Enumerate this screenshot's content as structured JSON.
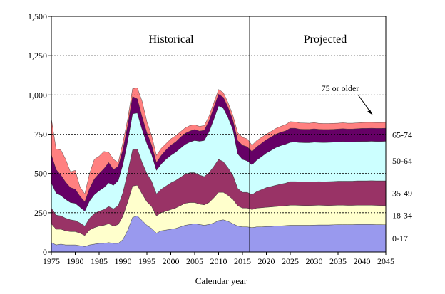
{
  "chart_data": {
    "type": "area",
    "xlabel": "Calendar year",
    "ylabel": "",
    "xlim": [
      1975,
      2045
    ],
    "ylim": [
      0,
      1500
    ],
    "y_ticks": [
      0,
      250,
      500,
      750,
      1000,
      1250,
      1500
    ],
    "y_tick_labels": [
      "0",
      "250",
      "500",
      "750",
      "1,000",
      "1,250",
      "1,500"
    ],
    "x_ticks": [
      1975,
      1980,
      1985,
      1990,
      1995,
      2000,
      2005,
      2010,
      2015,
      2020,
      2025,
      2030,
      2035,
      2040,
      2045
    ],
    "grid": "horizontal dashed",
    "divider_year": 2016.5,
    "region_labels": {
      "historical": "Historical",
      "projected": "Projected"
    },
    "annotation": "75 or older",
    "x": [
      1975,
      1976,
      1977,
      1978,
      1979,
      1980,
      1981,
      1982,
      1983,
      1984,
      1985,
      1986,
      1987,
      1988,
      1989,
      1990,
      1991,
      1992,
      1993,
      1994,
      1995,
      1996,
      1997,
      1998,
      1999,
      2000,
      2001,
      2002,
      2003,
      2004,
      2005,
      2006,
      2007,
      2008,
      2009,
      2010,
      2011,
      2012,
      2013,
      2014,
      2015,
      2016,
      2017,
      2018,
      2019,
      2020,
      2021,
      2022,
      2023,
      2024,
      2025,
      2026,
      2027,
      2028,
      2029,
      2030,
      2031,
      2032,
      2033,
      2034,
      2035,
      2036,
      2037,
      2038,
      2039,
      2040,
      2041,
      2042,
      2043,
      2044,
      2045
    ],
    "series": [
      {
        "name": "0-17",
        "color": "#9999ee",
        "values": [
          60,
          45,
          50,
          45,
          45,
          45,
          40,
          35,
          45,
          50,
          55,
          55,
          60,
          55,
          55,
          80,
          140,
          220,
          230,
          200,
          170,
          150,
          120,
          135,
          140,
          145,
          150,
          160,
          170,
          175,
          180,
          175,
          170,
          175,
          185,
          200,
          205,
          195,
          180,
          165,
          160,
          160,
          155,
          160,
          160,
          162,
          163,
          165,
          166,
          168,
          170,
          170,
          170,
          170,
          170,
          171,
          172,
          172,
          172,
          173,
          174,
          174,
          174,
          174,
          175,
          175,
          175,
          175,
          174,
          174,
          173
        ]
      },
      {
        "name": "18-34",
        "color": "#ffffcc",
        "values": [
          120,
          100,
          95,
          90,
          85,
          85,
          80,
          70,
          95,
          105,
          110,
          115,
          120,
          110,
          120,
          150,
          180,
          200,
          195,
          170,
          150,
          140,
          110,
          115,
          120,
          125,
          130,
          135,
          140,
          140,
          135,
          130,
          130,
          140,
          160,
          180,
          175,
          165,
          155,
          130,
          120,
          120,
          115,
          120,
          122,
          123,
          124,
          125,
          126,
          127,
          128,
          128,
          127,
          126,
          126,
          126,
          126,
          125,
          124,
          124,
          124,
          124,
          123,
          123,
          123,
          123,
          123,
          123,
          123,
          122,
          122
        ]
      },
      {
        "name": "35-49",
        "color": "#993366",
        "values": [
          100,
          90,
          85,
          80,
          75,
          70,
          65,
          60,
          75,
          90,
          95,
          100,
          110,
          110,
          120,
          150,
          190,
          230,
          230,
          200,
          180,
          160,
          140,
          150,
          160,
          170,
          175,
          180,
          185,
          190,
          190,
          185,
          180,
          190,
          200,
          210,
          195,
          175,
          155,
          110,
          100,
          100,
          95,
          105,
          115,
          125,
          130,
          135,
          140,
          143,
          150,
          150,
          150,
          150,
          150,
          150,
          150,
          150,
          152,
          152,
          153,
          153,
          154,
          154,
          155,
          155,
          155,
          156,
          156,
          157,
          158
        ]
      },
      {
        "name": "50-64",
        "color": "#ccffff",
        "values": [
          160,
          140,
          130,
          120,
          110,
          110,
          100,
          95,
          110,
          120,
          130,
          140,
          150,
          150,
          160,
          180,
          200,
          230,
          230,
          210,
          190,
          170,
          150,
          160,
          170,
          175,
          180,
          185,
          190,
          195,
          205,
          215,
          230,
          260,
          300,
          340,
          340,
          320,
          290,
          220,
          210,
          200,
          190,
          200,
          210,
          220,
          230,
          240,
          245,
          248,
          250,
          252,
          250,
          250,
          250,
          252,
          250,
          250,
          250,
          250,
          250,
          252,
          250,
          250,
          250,
          251,
          251,
          251,
          251,
          251,
          252
        ]
      },
      {
        "name": "65-74",
        "color": "#660066",
        "values": [
          180,
          150,
          130,
          110,
          95,
          90,
          70,
          60,
          80,
          100,
          110,
          120,
          130,
          100,
          90,
          95,
          100,
          110,
          90,
          80,
          70,
          60,
          50,
          55,
          60,
          65,
          65,
          70,
          70,
          70,
          70,
          65,
          65,
          70,
          75,
          75,
          70,
          65,
          60,
          85,
          90,
          90,
          85,
          85,
          85,
          85,
          85,
          85,
          85,
          85,
          90,
          88,
          85,
          85,
          85,
          85,
          83,
          83,
          82,
          82,
          82,
          82,
          82,
          82,
          82,
          83,
          83,
          83,
          83,
          83,
          83
        ]
      },
      {
        "name": "75 or older",
        "color": "#ff8080",
        "values": [
          230,
          130,
          160,
          145,
          100,
          120,
          60,
          50,
          95,
          125,
          110,
          110,
          65,
          65,
          25,
          45,
          40,
          50,
          70,
          100,
          70,
          60,
          45,
          45,
          40,
          40,
          40,
          35,
          35,
          35,
          30,
          30,
          30,
          30,
          30,
          30,
          30,
          30,
          30,
          50,
          50,
          50,
          40,
          40,
          38,
          35,
          36,
          37,
          38,
          40,
          42,
          40,
          40,
          40,
          39,
          40,
          38,
          38,
          38,
          38,
          37,
          38,
          37,
          37,
          37,
          37,
          38,
          37,
          37,
          37,
          37
        ]
      }
    ]
  }
}
